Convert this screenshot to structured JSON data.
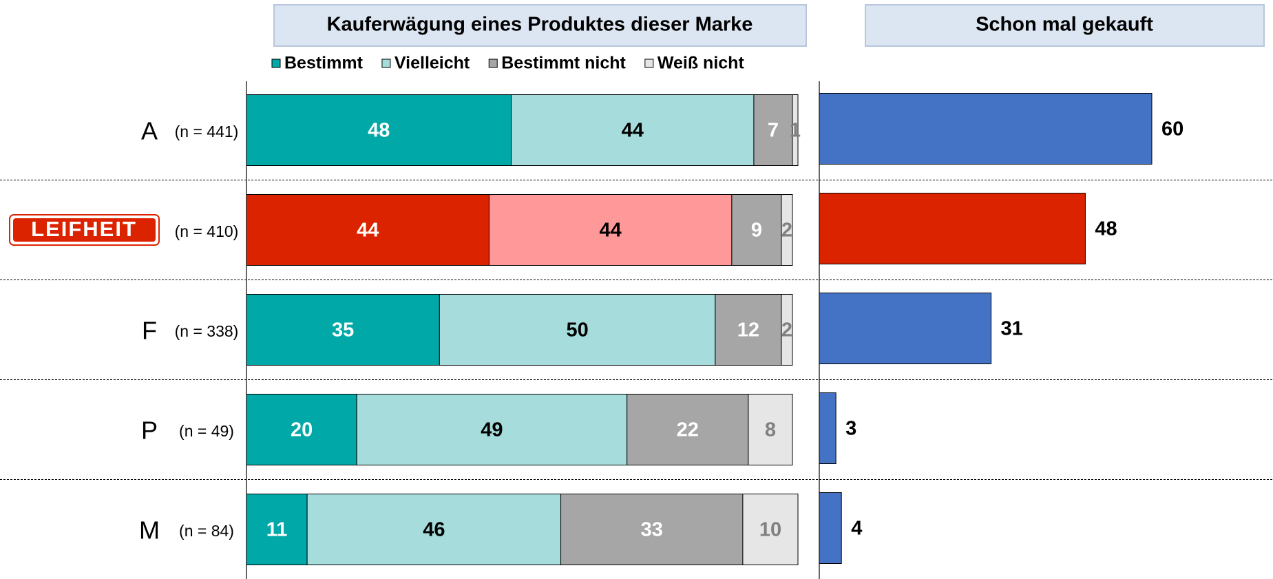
{
  "chart_data": [
    {
      "type": "stacked-bar-horizontal",
      "title": "Kauferwägung eines Produktes dieser Marke",
      "categories": [
        "A",
        "LEIFHEIT",
        "F",
        "P",
        "M"
      ],
      "category_notes": [
        "(n = 441)",
        "(n = 410)",
        "(n = 338)",
        "(n = 49)",
        "(n = 84)"
      ],
      "highlight_index": 1,
      "xlim": [
        0,
        100
      ],
      "series": [
        {
          "name": "Bestimmt",
          "color": "#00a8a8",
          "highlight_color": "#dc2300",
          "label_color": "#ffffff",
          "values": [
            48,
            44,
            35,
            20,
            11
          ]
        },
        {
          "name": "Vielleicht",
          "color": "#a6dcdc",
          "highlight_color": "#ff9999",
          "label_color": "#000000",
          "values": [
            44,
            44,
            50,
            49,
            46
          ]
        },
        {
          "name": "Bestimmt nicht",
          "color": "#a6a6a6",
          "highlight_color": "#a6a6a6",
          "label_color": "#ffffff",
          "values": [
            7,
            9,
            12,
            22,
            33
          ]
        },
        {
          "name": "Weiß nicht",
          "color": "#e6e6e6",
          "highlight_color": "#e6e6e6",
          "label_color": "#808080",
          "values": [
            1,
            2,
            2,
            8,
            10
          ]
        }
      ]
    },
    {
      "type": "bar-horizontal",
      "title": "Schon mal gekauft",
      "categories": [
        "A",
        "LEIFHEIT",
        "F",
        "P",
        "M"
      ],
      "highlight_index": 1,
      "color": "#4472c4",
      "highlight_color": "#dc2300",
      "xlim": [
        0,
        80
      ],
      "values": [
        60,
        48,
        31,
        3,
        4
      ]
    }
  ]
}
